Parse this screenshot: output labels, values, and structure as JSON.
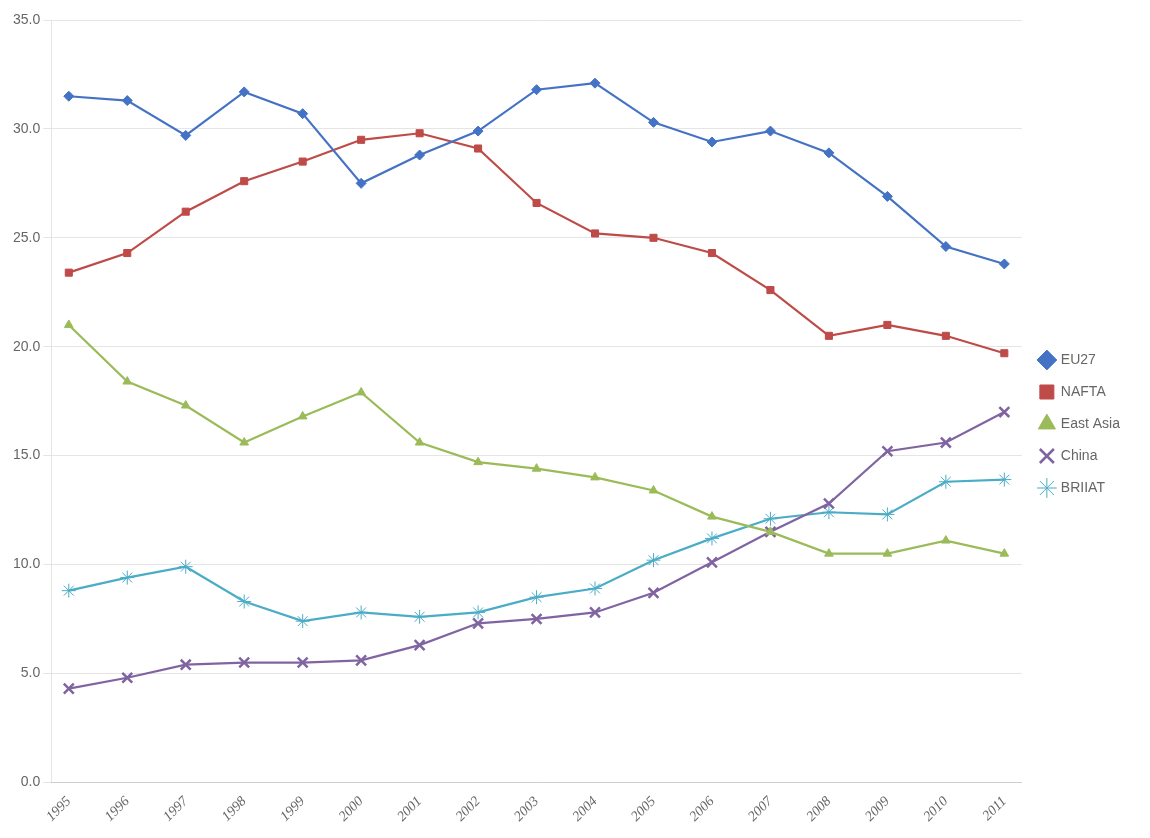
{
  "chart_data": {
    "type": "line",
    "x": [
      1995,
      1996,
      1997,
      1998,
      1999,
      2000,
      2001,
      2002,
      2003,
      2004,
      2005,
      2006,
      2007,
      2008,
      2009,
      2010,
      2011
    ],
    "series": [
      {
        "name": "EU27",
        "color": "#4472C4",
        "marker": "diamond",
        "values": [
          31.5,
          31.3,
          29.7,
          31.7,
          30.7,
          27.5,
          28.8,
          29.9,
          31.8,
          32.1,
          30.3,
          29.4,
          29.9,
          28.9,
          26.9,
          24.6,
          23.8
        ]
      },
      {
        "name": "NAFTA",
        "color": "#BE4B48",
        "marker": "square",
        "values": [
          23.4,
          24.3,
          26.2,
          27.6,
          28.5,
          29.5,
          29.8,
          29.1,
          26.6,
          25.2,
          25.0,
          24.3,
          22.6,
          20.5,
          21.0,
          20.5,
          19.7
        ]
      },
      {
        "name": "East Asia",
        "color": "#9BBB59",
        "marker": "triangle",
        "values": [
          21.0,
          18.4,
          17.3,
          15.6,
          16.8,
          17.9,
          15.6,
          14.7,
          14.4,
          14.0,
          13.4,
          12.2,
          11.5,
          10.5,
          10.5,
          11.1,
          10.5
        ]
      },
      {
        "name": "China",
        "color": "#8064A2",
        "marker": "x",
        "values": [
          4.3,
          4.8,
          5.4,
          5.5,
          5.5,
          5.6,
          6.3,
          7.3,
          7.5,
          7.8,
          8.7,
          10.1,
          11.5,
          12.8,
          15.2,
          15.6,
          17.0
        ]
      },
      {
        "name": "BRIIAT",
        "color": "#4BACC6",
        "marker": "star",
        "values": [
          8.8,
          9.4,
          9.9,
          8.3,
          7.4,
          7.8,
          7.6,
          7.8,
          8.5,
          8.9,
          10.2,
          11.2,
          12.1,
          12.4,
          12.3,
          13.8,
          13.9
        ]
      }
    ],
    "xlim": [
      1994.7,
      2011.3
    ],
    "xticks": [
      1995,
      1996,
      1997,
      1998,
      1999,
      2000,
      2001,
      2002,
      2003,
      2004,
      2005,
      2006,
      2007,
      2008,
      2009,
      2010,
      2011
    ],
    "ylim": [
      0,
      35
    ],
    "yticks": [
      {
        "value": 0,
        "label": "0.0"
      },
      {
        "value": 5,
        "label": "5.0"
      },
      {
        "value": 10,
        "label": "10.0"
      },
      {
        "value": 15,
        "label": "15.0"
      },
      {
        "value": 20,
        "label": "20.0"
      },
      {
        "value": 25,
        "label": "25.0"
      },
      {
        "value": 30,
        "label": "30.0"
      },
      {
        "value": 35,
        "label": "35.0"
      }
    ],
    "grid": true,
    "legend": "right"
  }
}
